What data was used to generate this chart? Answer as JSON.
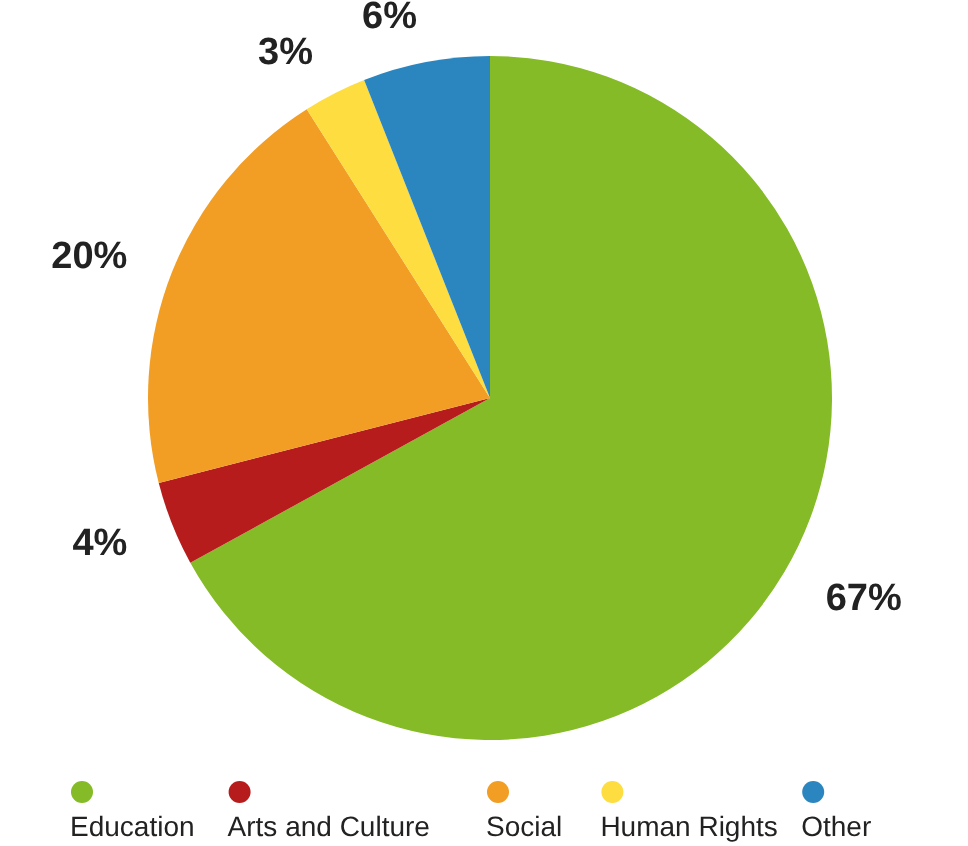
{
  "chart_data": {
    "type": "pie",
    "categories": [
      "Education",
      "Arts and Culture",
      "Social",
      "Human Rights",
      "Other"
    ],
    "values": [
      67,
      4,
      20,
      3,
      6
    ],
    "colors": [
      "#84bb27",
      "#b71c1c",
      "#f29d24",
      "#fddd3f",
      "#2b86bf"
    ],
    "value_labels": [
      "67%",
      "4%",
      "20%",
      "3%",
      "6%"
    ],
    "legend": "bottom"
  }
}
